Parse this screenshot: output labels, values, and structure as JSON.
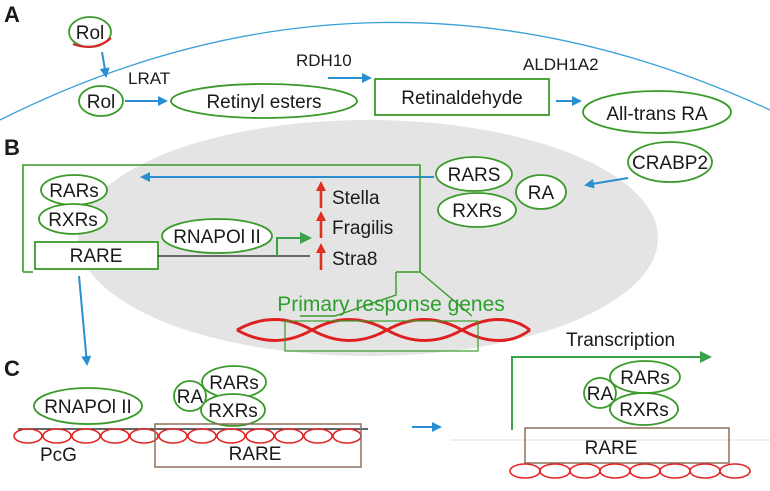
{
  "panels": {
    "a": "A",
    "b": "B",
    "c": "C"
  },
  "panel_a": {
    "rol_outside": "Rol",
    "rol_inside": "Rol",
    "lrat": "LRAT",
    "retinyl_esters": "Retinyl esters",
    "rdh10": "RDH10",
    "retinaldehyde": "Retinaldehyde",
    "aldh1a2": "ALDH1A2",
    "all_trans_ra": "All-trans RA"
  },
  "panel_b": {
    "rars_left": "RARs",
    "rxrs_left": "RXRs",
    "rare_left": "RARE",
    "rnapol": "RNAPOl II",
    "genes": [
      "Stella",
      "Fragilis",
      "Stra8"
    ],
    "rars_right": "RARS",
    "rxrs_right": "RXRs",
    "ra_right": "RA",
    "crabp2": "CRABP2",
    "primary_response": "Primary response genes"
  },
  "panel_c": {
    "rnapol": "RNAPOl II",
    "ra_left": "RA",
    "rars_left": "RARs",
    "rxrs_left": "RXRs",
    "pcg": "PcG",
    "rare_left": "RARE",
    "transcription": "Transcription",
    "ra_right": "RA",
    "rars_right": "RARs",
    "rxrs_right": "RXRs",
    "rare_right": "RARE"
  },
  "colors": {
    "green": "#3a9a2a",
    "blue": "#2a8fd0",
    "red": "#e32222",
    "nucleus_gray": "#e4e4e4",
    "brown": "#8b6f5a"
  }
}
